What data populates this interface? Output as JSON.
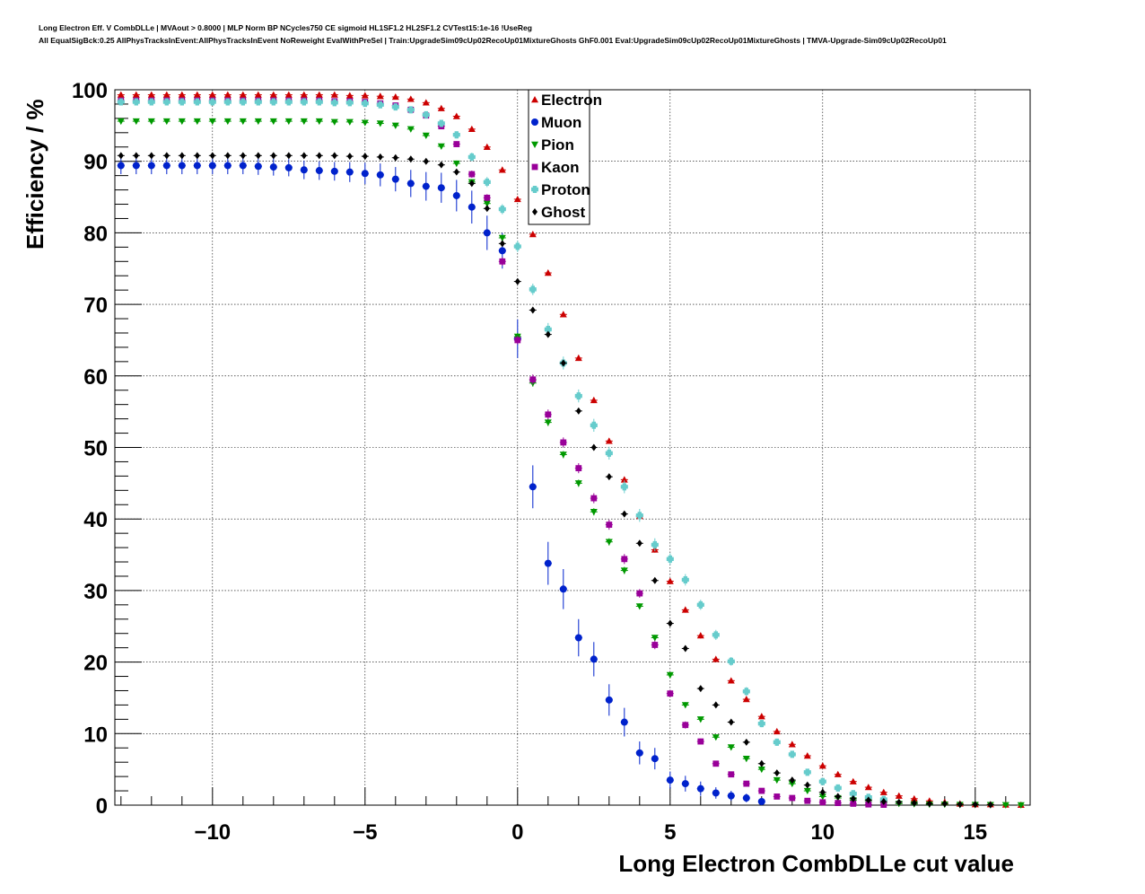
{
  "title_line1": "Long Electron Eff. V CombDLLe | MVAout > 0.8000 | MLP Norm BP NCycles750 CE sigmoid HL1SF1.2 HL2SF1.2 CVTest15:1e-16 !UseReg",
  "title_line2": "All EqualSigBck:0.25 AllPhysTracksInEvent:AllPhysTracksInEvent NoReweight EvalWithPreSel | Train:UpgradeSim09cUp02RecoUp01MixtureGhosts GhF0.001 Eval:UpgradeSim09cUp02RecoUp01MixtureGhosts | TMVA-Upgrade-Sim09cUp02RecoUp01",
  "chart_data": {
    "type": "scatter",
    "xlabel": "Long Electron CombDLLe cut value",
    "ylabel": "Efficiency / %",
    "xlim": [
      -13.2,
      16.8
    ],
    "ylim": [
      0,
      100
    ],
    "xticks": [
      -10,
      -5,
      0,
      5,
      10,
      15
    ],
    "xtick_labels": [
      "−10",
      "−5",
      "0",
      "5",
      "10",
      "15"
    ],
    "yticks": [
      0,
      10,
      20,
      30,
      40,
      50,
      60,
      70,
      80,
      90,
      100
    ],
    "grid": true,
    "legend_position": "top-center",
    "series": [
      {
        "name": "Electron",
        "color": "#cc0000",
        "marker": "triangle-up",
        "x": [
          -13.0,
          -12.5,
          -12.0,
          -11.5,
          -11.0,
          -10.5,
          -10.0,
          -9.5,
          -9.0,
          -8.5,
          -8.0,
          -7.5,
          -7.0,
          -6.5,
          -6.0,
          -5.5,
          -5.0,
          -4.5,
          -4.0,
          -3.5,
          -3.0,
          -2.5,
          -2.0,
          -1.5,
          -1.0,
          -0.5,
          0.0,
          0.5,
          1.0,
          1.5,
          2.0,
          2.5,
          3.0,
          3.5,
          4.0,
          4.5,
          5.0,
          5.5,
          6.0,
          6.5,
          7.0,
          7.5,
          8.0,
          8.5,
          9.0,
          9.5,
          10.0,
          10.5,
          11.0,
          11.5,
          12.0,
          12.5,
          13.0,
          13.5,
          14.0,
          14.5,
          15.0,
          15.5,
          16.0,
          16.5
        ],
        "y": [
          99.3,
          99.3,
          99.3,
          99.3,
          99.3,
          99.3,
          99.3,
          99.3,
          99.3,
          99.3,
          99.3,
          99.3,
          99.3,
          99.3,
          99.3,
          99.2,
          99.2,
          99.1,
          99.0,
          98.7,
          98.2,
          97.4,
          96.3,
          94.5,
          92.0,
          88.8,
          84.7,
          79.8,
          74.4,
          68.6,
          62.5,
          56.6,
          50.9,
          45.5,
          40.4,
          35.7,
          31.3,
          27.3,
          23.7,
          20.4,
          17.4,
          14.8,
          12.4,
          10.3,
          8.5,
          6.9,
          5.5,
          4.3,
          3.3,
          2.5,
          1.8,
          1.3,
          0.9,
          0.6,
          0.4,
          0.2,
          0.1,
          0.1,
          0.05,
          0.02
        ],
        "yerr": [
          0.2,
          0.2,
          0.2,
          0.2,
          0.2,
          0.2,
          0.2,
          0.2,
          0.2,
          0.2,
          0.2,
          0.2,
          0.2,
          0.2,
          0.2,
          0.2,
          0.2,
          0.2,
          0.2,
          0.2,
          0.2,
          0.2,
          0.2,
          0.2,
          0.3,
          0.3,
          0.3,
          0.3,
          0.4,
          0.4,
          0.4,
          0.4,
          0.4,
          0.4,
          0.4,
          0.4,
          0.4,
          0.4,
          0.4,
          0.3,
          0.3,
          0.3,
          0.3,
          0.3,
          0.2,
          0.2,
          0.2,
          0.2,
          0.1,
          0.1,
          0.1,
          0.1,
          0.1,
          0.1,
          0.1,
          0.1,
          0.05,
          0.05,
          0.05,
          0.05
        ]
      },
      {
        "name": "Muon",
        "color": "#0022cc",
        "marker": "circle",
        "x": [
          -13.0,
          -12.5,
          -12.0,
          -11.5,
          -11.0,
          -10.5,
          -10.0,
          -9.5,
          -9.0,
          -8.5,
          -8.0,
          -7.5,
          -7.0,
          -6.5,
          -6.0,
          -5.5,
          -5.0,
          -4.5,
          -4.0,
          -3.5,
          -3.0,
          -2.5,
          -2.0,
          -1.5,
          -1.0,
          -0.5,
          0.0,
          0.5,
          1.0,
          1.5,
          2.0,
          2.5,
          3.0,
          3.5,
          4.0,
          4.5,
          5.0,
          5.5,
          6.0,
          6.5,
          7.0,
          7.5,
          8.0
        ],
        "y": [
          89.4,
          89.4,
          89.4,
          89.4,
          89.4,
          89.4,
          89.4,
          89.4,
          89.4,
          89.3,
          89.2,
          89.1,
          88.8,
          88.7,
          88.6,
          88.5,
          88.3,
          88.1,
          87.5,
          86.9,
          86.5,
          86.3,
          85.2,
          83.6,
          80.0,
          77.5,
          65.2,
          44.5,
          33.8,
          30.2,
          23.4,
          20.4,
          14.7,
          11.6,
          7.3,
          6.5,
          3.5,
          3.0,
          2.3,
          1.7,
          1.3,
          1.0,
          0.5
        ],
        "yerr": [
          1.2,
          1.2,
          1.2,
          1.2,
          1.2,
          1.2,
          1.2,
          1.2,
          1.2,
          1.2,
          1.2,
          1.2,
          1.3,
          1.3,
          1.3,
          1.4,
          1.5,
          1.6,
          1.7,
          1.9,
          2.0,
          2.1,
          2.2,
          2.3,
          2.4,
          2.5,
          2.7,
          3.0,
          3.0,
          2.8,
          2.6,
          2.4,
          2.2,
          2.0,
          1.6,
          1.5,
          1.2,
          1.1,
          1.0,
          0.8,
          0.7,
          0.6,
          0.4
        ]
      },
      {
        "name": "Pion",
        "color": "#009900",
        "marker": "triangle-down",
        "x": [
          -13.0,
          -12.5,
          -12.0,
          -11.5,
          -11.0,
          -10.5,
          -10.0,
          -9.5,
          -9.0,
          -8.5,
          -8.0,
          -7.5,
          -7.0,
          -6.5,
          -6.0,
          -5.5,
          -5.0,
          -4.5,
          -4.0,
          -3.5,
          -3.0,
          -2.5,
          -2.0,
          -1.5,
          -1.0,
          -0.5,
          0.0,
          0.5,
          1.0,
          1.5,
          2.0,
          2.5,
          3.0,
          3.5,
          4.0,
          4.5,
          5.0,
          5.5,
          6.0,
          6.5,
          7.0,
          7.5,
          8.0,
          8.5,
          9.0,
          9.5,
          10.0,
          10.5,
          11.0,
          11.5,
          12.0,
          12.5,
          13.0,
          13.5,
          14.0,
          14.5,
          15.0,
          15.5,
          16.0,
          16.5
        ],
        "y": [
          95.6,
          95.6,
          95.6,
          95.6,
          95.6,
          95.6,
          95.6,
          95.6,
          95.6,
          95.6,
          95.6,
          95.6,
          95.6,
          95.6,
          95.5,
          95.5,
          95.4,
          95.3,
          95.0,
          94.5,
          93.6,
          92.1,
          89.7,
          87.1,
          84.1,
          79.3,
          65.5,
          59.0,
          53.5,
          49.0,
          45.0,
          41.0,
          36.8,
          32.8,
          27.8,
          23.4,
          18.2,
          14.0,
          12.0,
          9.5,
          8.1,
          6.5,
          5.0,
          3.5,
          3.0,
          2.0,
          1.2,
          1.0,
          0.7,
          0.5,
          0.3,
          0.2,
          0.15,
          0.1,
          0.1,
          0.05,
          0.05,
          0.03,
          0.02,
          0.01
        ],
        "yerr": [
          0.2,
          0.2,
          0.2,
          0.2,
          0.2,
          0.2,
          0.2,
          0.2,
          0.2,
          0.2,
          0.2,
          0.2,
          0.2,
          0.2,
          0.2,
          0.2,
          0.2,
          0.2,
          0.2,
          0.3,
          0.3,
          0.3,
          0.4,
          0.4,
          0.4,
          0.4,
          0.5,
          0.5,
          0.5,
          0.5,
          0.5,
          0.5,
          0.5,
          0.5,
          0.4,
          0.4,
          0.4,
          0.4,
          0.3,
          0.3,
          0.3,
          0.3,
          0.2,
          0.2,
          0.2,
          0.2,
          0.1,
          0.1,
          0.1,
          0.1,
          0.1,
          0.1,
          0.05,
          0.05,
          0.05,
          0.05,
          0.05,
          0.05,
          0.05,
          0.05
        ]
      },
      {
        "name": "Kaon",
        "color": "#990099",
        "marker": "square",
        "x": [
          -13.0,
          -12.5,
          -12.0,
          -11.5,
          -11.0,
          -10.5,
          -10.0,
          -9.5,
          -9.0,
          -8.5,
          -8.0,
          -7.5,
          -7.0,
          -6.5,
          -6.0,
          -5.5,
          -5.0,
          -4.5,
          -4.0,
          -3.5,
          -3.0,
          -2.5,
          -2.0,
          -1.5,
          -1.0,
          -0.5,
          0.0,
          0.5,
          1.0,
          1.5,
          2.0,
          2.5,
          3.0,
          3.5,
          4.0,
          4.5,
          5.0,
          5.5,
          6.0,
          6.5,
          7.0,
          7.5,
          8.0,
          8.5,
          9.0,
          9.5,
          10.0,
          10.5,
          11.0,
          11.5,
          12.0
        ],
        "y": [
          98.5,
          98.5,
          98.5,
          98.5,
          98.5,
          98.5,
          98.5,
          98.5,
          98.5,
          98.5,
          98.5,
          98.5,
          98.5,
          98.5,
          98.4,
          98.4,
          98.3,
          98.1,
          97.8,
          97.2,
          96.4,
          94.9,
          92.4,
          88.2,
          84.9,
          76.0,
          65.0,
          59.5,
          54.6,
          50.7,
          47.1,
          42.9,
          39.2,
          34.4,
          29.6,
          22.4,
          15.6,
          11.2,
          8.9,
          5.8,
          4.3,
          3.0,
          2.0,
          1.2,
          1.0,
          0.6,
          0.4,
          0.3,
          0.2,
          0.1,
          0.05
        ],
        "yerr": [
          0.2,
          0.2,
          0.2,
          0.2,
          0.2,
          0.2,
          0.2,
          0.2,
          0.2,
          0.2,
          0.2,
          0.2,
          0.2,
          0.2,
          0.2,
          0.2,
          0.2,
          0.2,
          0.2,
          0.3,
          0.3,
          0.4,
          0.4,
          0.5,
          0.5,
          0.6,
          0.6,
          0.7,
          0.7,
          0.7,
          0.7,
          0.7,
          0.7,
          0.7,
          0.6,
          0.6,
          0.5,
          0.5,
          0.4,
          0.4,
          0.3,
          0.3,
          0.2,
          0.2,
          0.2,
          0.1,
          0.1,
          0.1,
          0.1,
          0.05,
          0.05
        ]
      },
      {
        "name": "Proton",
        "color": "#66cccc",
        "marker": "cross",
        "x": [
          -13.0,
          -12.5,
          -12.0,
          -11.5,
          -11.0,
          -10.5,
          -10.0,
          -9.5,
          -9.0,
          -8.5,
          -8.0,
          -7.5,
          -7.0,
          -6.5,
          -6.0,
          -5.5,
          -5.0,
          -4.5,
          -4.0,
          -3.5,
          -3.0,
          -2.5,
          -2.0,
          -1.5,
          -1.0,
          -0.5,
          0.0,
          0.5,
          1.0,
          1.5,
          2.0,
          2.5,
          3.0,
          3.5,
          4.0,
          4.5,
          5.0,
          5.5,
          6.0,
          6.5,
          7.0,
          7.5,
          8.0,
          8.5,
          9.0,
          9.5,
          10.0,
          10.5,
          11.0,
          11.5,
          12.0
        ],
        "y": [
          98.3,
          98.3,
          98.3,
          98.3,
          98.3,
          98.3,
          98.3,
          98.3,
          98.3,
          98.3,
          98.3,
          98.3,
          98.3,
          98.3,
          98.2,
          98.2,
          98.1,
          97.9,
          97.6,
          97.2,
          96.5,
          95.3,
          93.7,
          90.6,
          87.1,
          83.3,
          78.1,
          72.1,
          66.5,
          61.8,
          57.2,
          53.1,
          49.2,
          44.5,
          40.5,
          36.4,
          34.4,
          31.5,
          28.0,
          23.8,
          20.1,
          15.9,
          11.4,
          8.8,
          7.1,
          4.6,
          3.3,
          2.4,
          1.6,
          1.1,
          0.8
        ],
        "yerr": [
          0.3,
          0.3,
          0.3,
          0.3,
          0.3,
          0.3,
          0.3,
          0.3,
          0.3,
          0.3,
          0.3,
          0.3,
          0.3,
          0.3,
          0.3,
          0.3,
          0.3,
          0.3,
          0.4,
          0.4,
          0.4,
          0.5,
          0.5,
          0.6,
          0.7,
          0.7,
          0.8,
          0.8,
          0.9,
          0.9,
          0.9,
          0.9,
          0.9,
          0.9,
          0.9,
          0.9,
          0.8,
          0.8,
          0.7,
          0.7,
          0.6,
          0.6,
          0.5,
          0.5,
          0.4,
          0.3,
          0.3,
          0.2,
          0.2,
          0.1,
          0.1
        ]
      },
      {
        "name": "Ghost",
        "color": "#000000",
        "marker": "diamond",
        "x": [
          -13.0,
          -12.5,
          -12.0,
          -11.5,
          -11.0,
          -10.5,
          -10.0,
          -9.5,
          -9.0,
          -8.5,
          -8.0,
          -7.5,
          -7.0,
          -6.5,
          -6.0,
          -5.5,
          -5.0,
          -4.5,
          -4.0,
          -3.5,
          -3.0,
          -2.5,
          -2.0,
          -1.5,
          -1.0,
          -0.5,
          0.0,
          0.5,
          1.0,
          1.5,
          2.0,
          2.5,
          3.0,
          3.5,
          4.0,
          4.5,
          5.0,
          5.5,
          6.0,
          6.5,
          7.0,
          7.5,
          8.0,
          8.5,
          9.0,
          9.5,
          10.0,
          10.5,
          11.0,
          11.5,
          12.0,
          12.5,
          13.0,
          13.5,
          14.0,
          14.5,
          15.0,
          15.5
        ],
        "y": [
          90.8,
          90.8,
          90.8,
          90.8,
          90.8,
          90.8,
          90.8,
          90.8,
          90.8,
          90.8,
          90.8,
          90.8,
          90.8,
          90.8,
          90.8,
          90.7,
          90.7,
          90.6,
          90.5,
          90.3,
          90.0,
          89.5,
          88.5,
          86.9,
          83.4,
          78.5,
          73.2,
          69.2,
          65.8,
          61.8,
          55.1,
          50.0,
          45.9,
          40.7,
          36.6,
          31.4,
          25.4,
          21.9,
          16.3,
          14.0,
          11.6,
          8.8,
          5.8,
          4.5,
          3.5,
          2.8,
          1.8,
          1.2,
          0.9,
          0.7,
          0.5,
          0.4,
          0.3,
          0.2,
          0.2,
          0.1,
          0.1,
          0.05
        ],
        "yerr": [
          0.3,
          0.3,
          0.3,
          0.3,
          0.3,
          0.3,
          0.3,
          0.3,
          0.3,
          0.3,
          0.3,
          0.3,
          0.3,
          0.3,
          0.3,
          0.3,
          0.3,
          0.3,
          0.3,
          0.3,
          0.3,
          0.3,
          0.3,
          0.3,
          0.3,
          0.3,
          0.3,
          0.3,
          0.3,
          0.3,
          0.3,
          0.3,
          0.3,
          0.3,
          0.3,
          0.3,
          0.3,
          0.3,
          0.3,
          0.3,
          0.3,
          0.3,
          0.2,
          0.2,
          0.2,
          0.2,
          0.2,
          0.2,
          0.1,
          0.1,
          0.1,
          0.1,
          0.1,
          0.1,
          0.1,
          0.1,
          0.1,
          0.1
        ]
      }
    ]
  }
}
